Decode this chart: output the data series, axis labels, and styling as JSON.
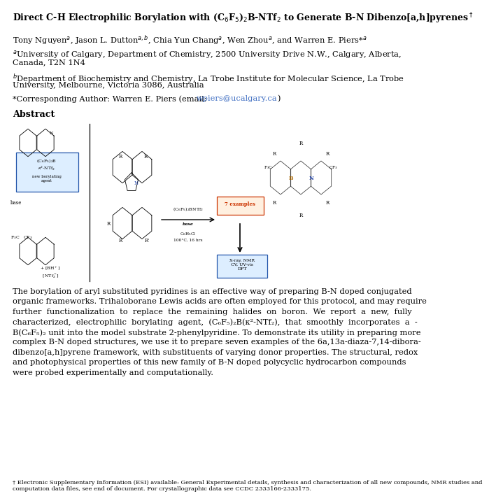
{
  "bg_color": "#ffffff",
  "text_color": "#000000",
  "link_color": "#4472c4",
  "title_fontsize": 9.0,
  "body_fontsize": 8.2,
  "footnote_fontsize": 6.0,
  "abstract_lines": [
    "The borylation of aryl substituted pyridines is an effective way of preparing B-N doped conjugated",
    "organic frameworks. Trihaloborane Lewis acids are often employed for this protocol, and may require",
    "further  functionalization  to  replace  the  remaining  halides  on  boron.  We  report  a  new,  fully",
    "characterized,  electrophilic  borylating  agent,  (C₆F₅)₂B(κ²-NTf₂),  that  smoothly  incorporates  a  -",
    "B(C₆F₅)₂ unit into the model substrate 2-phenylpyridine. To demonstrate its utility in preparing more",
    "complex B-N doped structures, we use it to prepare seven examples of the 6a,13a-diaza-7,14-dibora-",
    "dibenzo[a,h]pyrene framework, with substituents of varying donor properties. The structural, redox",
    "and photophysical properties of this new family of B-N doped polycyclic hydrocarbon compounds",
    "were probed experimentally and computationally."
  ],
  "footnote_lines": [
    "† Electronic Supplementary Information (ESI) available: General Experimental details, synthesis and characterization of all new compounds, NMR studies and",
    "computation data files, see end of document. For crystallographic data see CCDC 2333166-2333175."
  ]
}
